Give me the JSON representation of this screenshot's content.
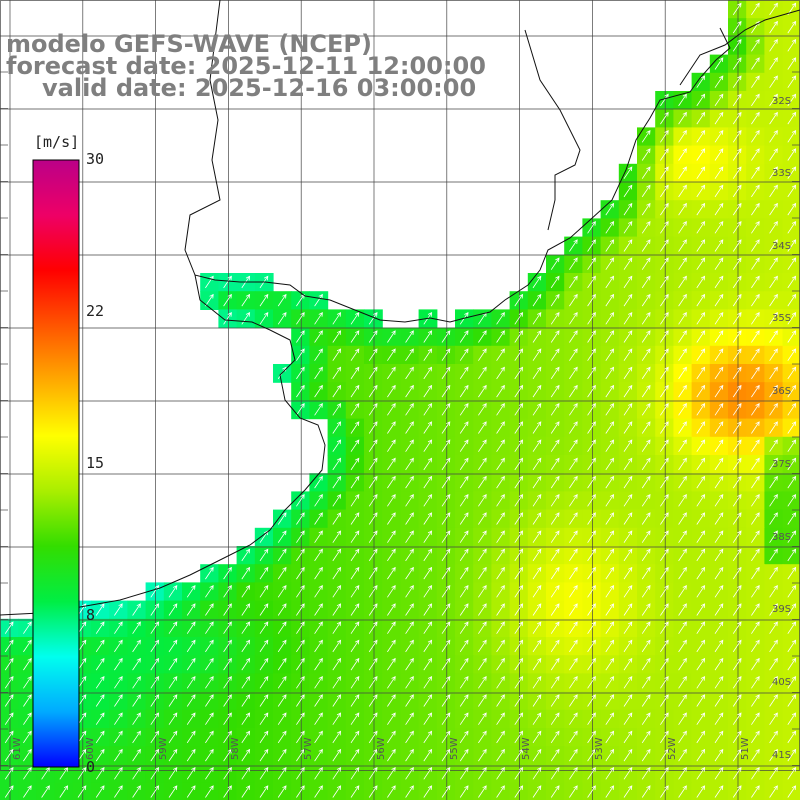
{
  "title": {
    "model": "modelo GEFS-WAVE (NCEP)",
    "forecast": "forecast date: 2025-12-11 12:00:00",
    "valid": "valid date: 2025-12-16 03:00:00"
  },
  "colorbar": {
    "unit": "[m/s]",
    "ticks": [
      "30",
      "22",
      "15",
      "8",
      "0"
    ],
    "min": 0,
    "max": 30,
    "colors": [
      "#0000ff",
      "#00aaff",
      "#00ffee",
      "#00ee44",
      "#33dd00",
      "#aaee00",
      "#ffff00",
      "#ffaa00",
      "#ff5500",
      "#ff0000",
      "#ee0066",
      "#bb0088"
    ]
  },
  "axes": {
    "lat_labels": [
      "32S",
      "33S",
      "34S",
      "35S",
      "36S",
      "37S",
      "38S",
      "39S",
      "40S",
      "41S"
    ],
    "lon_labels": [
      "61W",
      "60W",
      "59W",
      "58W",
      "57W",
      "56W",
      "55W",
      "54W",
      "53W",
      "52W",
      "51W"
    ]
  },
  "chart_data": {
    "type": "heatmap",
    "variable": "wind speed",
    "unit": "m/s",
    "lon_range": [
      -61.3,
      -50.5
    ],
    "lat_range": [
      -41.2,
      -31.5
    ],
    "dominant_wind_direction": "from south-west",
    "typical_values": {
      "coast_lee": 8,
      "open_sea": 12,
      "east_max": 19
    }
  }
}
